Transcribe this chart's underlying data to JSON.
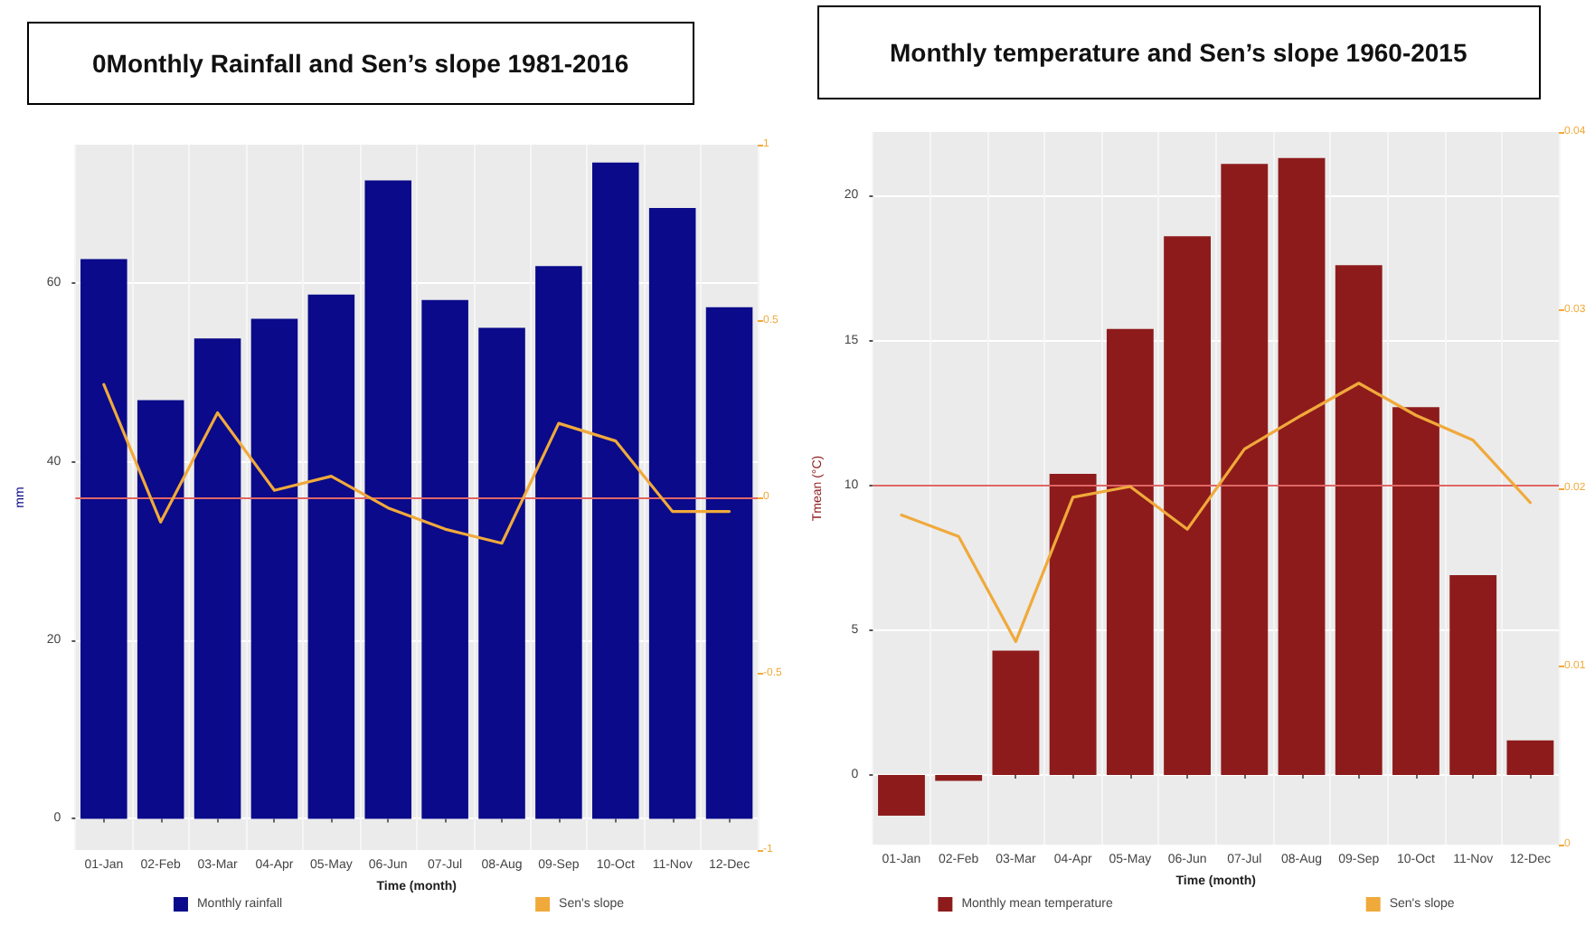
{
  "chart_data": [
    {
      "type": "bar",
      "title": "0Monthly Rainfall and Sen’s slope 1981-2016",
      "xlabel": "Time (month)",
      "ylabel": "mm",
      "categories": [
        "01-Jan",
        "02-Feb",
        "03-Mar",
        "04-Apr",
        "05-May",
        "06-Jun",
        "07-Jul",
        "08-Aug",
        "09-Sep",
        "10-Oct",
        "11-Nov",
        "12-Dec"
      ],
      "series": [
        {
          "name": "Monthly rainfall",
          "color": "#0a0a8a",
          "values": [
            62.7,
            46.9,
            53.8,
            56.0,
            58.7,
            71.5,
            58.1,
            55.0,
            61.9,
            73.5,
            68.4,
            57.3
          ]
        },
        {
          "name": "Sen's slope",
          "type": "line",
          "axis": "y2",
          "color": "#f0a93b",
          "marker": "none",
          "values": [
            0.32,
            -0.07,
            0.24,
            0.02,
            0.06,
            -0.03,
            -0.09,
            -0.13,
            0.21,
            0.16,
            -0.04,
            -0.04
          ]
        }
      ],
      "ylim": [
        -3.5,
        75.5
      ],
      "yticks": [
        0,
        20,
        40,
        60
      ],
      "y2lim": [
        -1,
        1
      ],
      "y2ticks": [
        -1,
        -0.5,
        0,
        0.5,
        1
      ],
      "ref_lines": [
        {
          "axis": "y2",
          "value": 0,
          "color": "#e06666"
        }
      ],
      "grid": true,
      "legend": "bottom"
    },
    {
      "type": "bar",
      "title": "Monthly temperature and Sen’s slope 1960-2015",
      "xlabel": "Time (month)",
      "ylabel": "Tmean (°C)",
      "categories": [
        "01-Jan",
        "02-Feb",
        "03-Mar",
        "04-Apr",
        "05-May",
        "06-Jun",
        "07-Jul",
        "08-Aug",
        "09-Sep",
        "10-Oct",
        "11-Nov",
        "12-Dec"
      ],
      "series": [
        {
          "name": "Monthly mean temperature",
          "color": "#8e1b1b",
          "values": [
            -1.4,
            -0.2,
            4.3,
            10.4,
            15.4,
            18.6,
            21.1,
            21.3,
            17.6,
            12.7,
            6.9,
            1.2
          ]
        },
        {
          "name": "Sen's slope",
          "type": "line",
          "axis": "y2",
          "color": "#f0a93b",
          "marker": "none",
          "values": [
            0.0185,
            0.0173,
            0.0114,
            0.0195,
            0.0201,
            0.0177,
            0.0222,
            0.0241,
            0.0259,
            0.0241,
            0.0227,
            0.0192
          ]
        }
      ],
      "ylim": [
        -2.4,
        22.2
      ],
      "yticks": [
        0,
        5,
        10,
        15,
        20
      ],
      "y2lim": [
        0,
        0.04
      ],
      "y2ticks": [
        0,
        0.01,
        0.02,
        0.03,
        0.04
      ],
      "ref_lines": [
        {
          "axis": "y",
          "value": 10,
          "color": "#e06666"
        }
      ],
      "grid": true,
      "legend": "bottom"
    }
  ]
}
